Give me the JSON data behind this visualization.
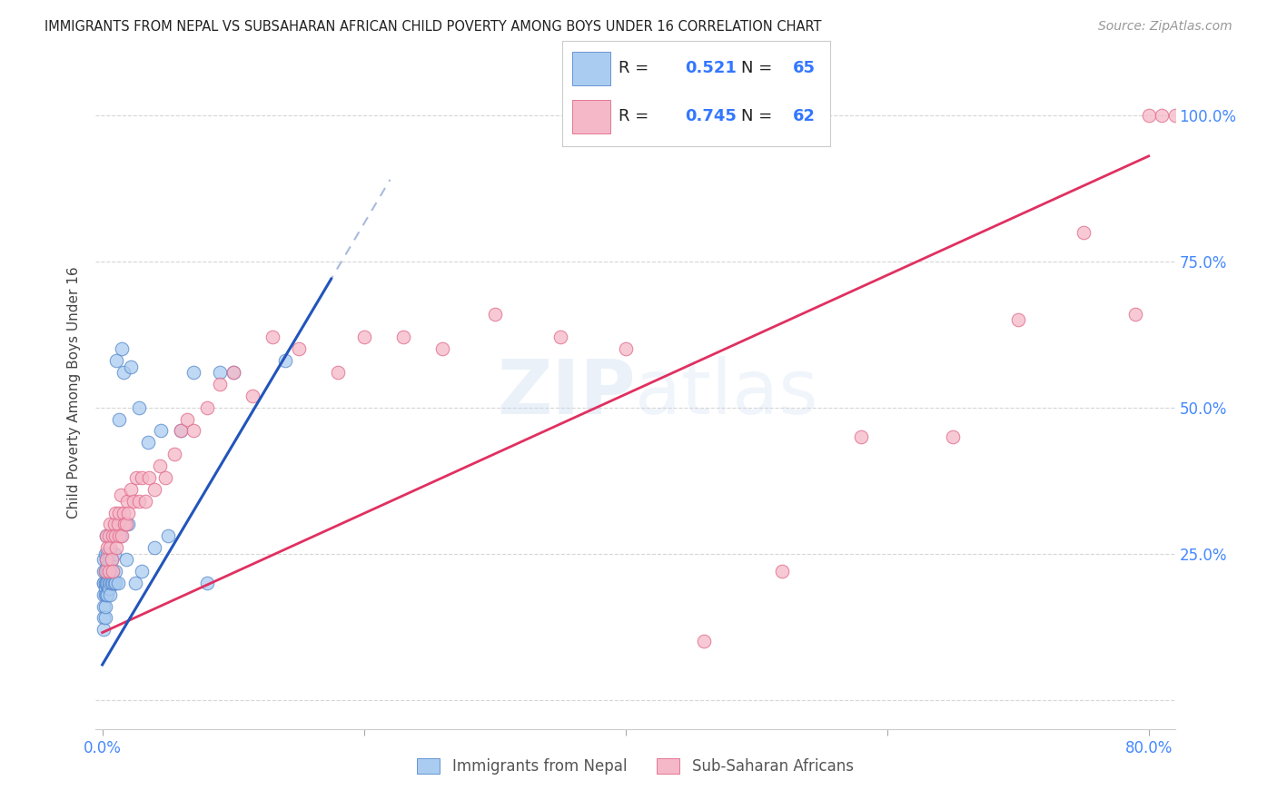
{
  "title": "IMMIGRANTS FROM NEPAL VS SUBSAHARAN AFRICAN CHILD POVERTY AMONG BOYS UNDER 16 CORRELATION CHART",
  "source": "Source: ZipAtlas.com",
  "ylabel": "Child Poverty Among Boys Under 16",
  "watermark": "ZIPatlas",
  "legend_label1": "Immigrants from Nepal",
  "legend_label2": "Sub-Saharan Africans",
  "nepal_color": "#aaccf0",
  "nepal_edge_color": "#5588cc",
  "africa_color": "#f5b8c8",
  "africa_edge_color": "#e06888",
  "nepal_line_color": "#2255bb",
  "africa_line_color": "#e03060",
  "nepal_dash_color": "#aabbdd",
  "background_color": "#ffffff",
  "grid_color": "#cccccc",
  "xlim": [
    -0.005,
    0.82
  ],
  "ylim": [
    -0.05,
    1.1
  ],
  "nepal_line_x0": 0.0,
  "nepal_line_y0": 0.06,
  "nepal_line_x1": 0.175,
  "nepal_line_y1": 0.72,
  "africa_line_x0": 0.0,
  "africa_line_y0": 0.115,
  "africa_line_x1": 0.8,
  "africa_line_y1": 0.93,
  "nepal_scatter_x": [
    0.001,
    0.001,
    0.001,
    0.001,
    0.001,
    0.001,
    0.001,
    0.001,
    0.002,
    0.002,
    0.002,
    0.002,
    0.002,
    0.002,
    0.002,
    0.003,
    0.003,
    0.003,
    0.003,
    0.003,
    0.003,
    0.004,
    0.004,
    0.004,
    0.004,
    0.004,
    0.005,
    0.005,
    0.005,
    0.005,
    0.006,
    0.006,
    0.006,
    0.006,
    0.007,
    0.007,
    0.007,
    0.008,
    0.008,
    0.009,
    0.009,
    0.01,
    0.01,
    0.011,
    0.012,
    0.013,
    0.014,
    0.015,
    0.016,
    0.018,
    0.02,
    0.022,
    0.025,
    0.028,
    0.03,
    0.035,
    0.04,
    0.045,
    0.05,
    0.06,
    0.07,
    0.08,
    0.09,
    0.1,
    0.14
  ],
  "nepal_scatter_y": [
    0.18,
    0.2,
    0.22,
    0.24,
    0.16,
    0.14,
    0.2,
    0.12,
    0.19,
    0.22,
    0.2,
    0.25,
    0.18,
    0.14,
    0.16,
    0.24,
    0.2,
    0.22,
    0.18,
    0.28,
    0.2,
    0.22,
    0.25,
    0.2,
    0.23,
    0.18,
    0.2,
    0.24,
    0.22,
    0.19,
    0.22,
    0.2,
    0.25,
    0.18,
    0.2,
    0.24,
    0.22,
    0.2,
    0.22,
    0.25,
    0.2,
    0.22,
    0.2,
    0.58,
    0.2,
    0.48,
    0.28,
    0.6,
    0.56,
    0.24,
    0.3,
    0.57,
    0.2,
    0.5,
    0.22,
    0.44,
    0.26,
    0.46,
    0.28,
    0.46,
    0.56,
    0.2,
    0.56,
    0.56,
    0.58
  ],
  "africa_scatter_x": [
    0.002,
    0.003,
    0.003,
    0.004,
    0.005,
    0.005,
    0.006,
    0.006,
    0.007,
    0.008,
    0.008,
    0.009,
    0.01,
    0.01,
    0.011,
    0.012,
    0.013,
    0.013,
    0.014,
    0.015,
    0.016,
    0.017,
    0.018,
    0.019,
    0.02,
    0.022,
    0.024,
    0.026,
    0.028,
    0.03,
    0.033,
    0.036,
    0.04,
    0.044,
    0.048,
    0.055,
    0.06,
    0.065,
    0.07,
    0.08,
    0.09,
    0.1,
    0.115,
    0.13,
    0.15,
    0.18,
    0.2,
    0.23,
    0.26,
    0.3,
    0.35,
    0.4,
    0.46,
    0.52,
    0.58,
    0.65,
    0.7,
    0.75,
    0.79,
    0.8,
    0.81,
    0.82
  ],
  "africa_scatter_y": [
    0.22,
    0.24,
    0.28,
    0.26,
    0.22,
    0.28,
    0.26,
    0.3,
    0.24,
    0.28,
    0.22,
    0.3,
    0.28,
    0.32,
    0.26,
    0.3,
    0.28,
    0.32,
    0.35,
    0.28,
    0.32,
    0.3,
    0.3,
    0.34,
    0.32,
    0.36,
    0.34,
    0.38,
    0.34,
    0.38,
    0.34,
    0.38,
    0.36,
    0.4,
    0.38,
    0.42,
    0.46,
    0.48,
    0.46,
    0.5,
    0.54,
    0.56,
    0.52,
    0.62,
    0.6,
    0.56,
    0.62,
    0.62,
    0.6,
    0.66,
    0.62,
    0.6,
    0.1,
    0.22,
    0.45,
    0.45,
    0.65,
    0.8,
    0.66,
    1.0,
    1.0,
    1.0
  ]
}
